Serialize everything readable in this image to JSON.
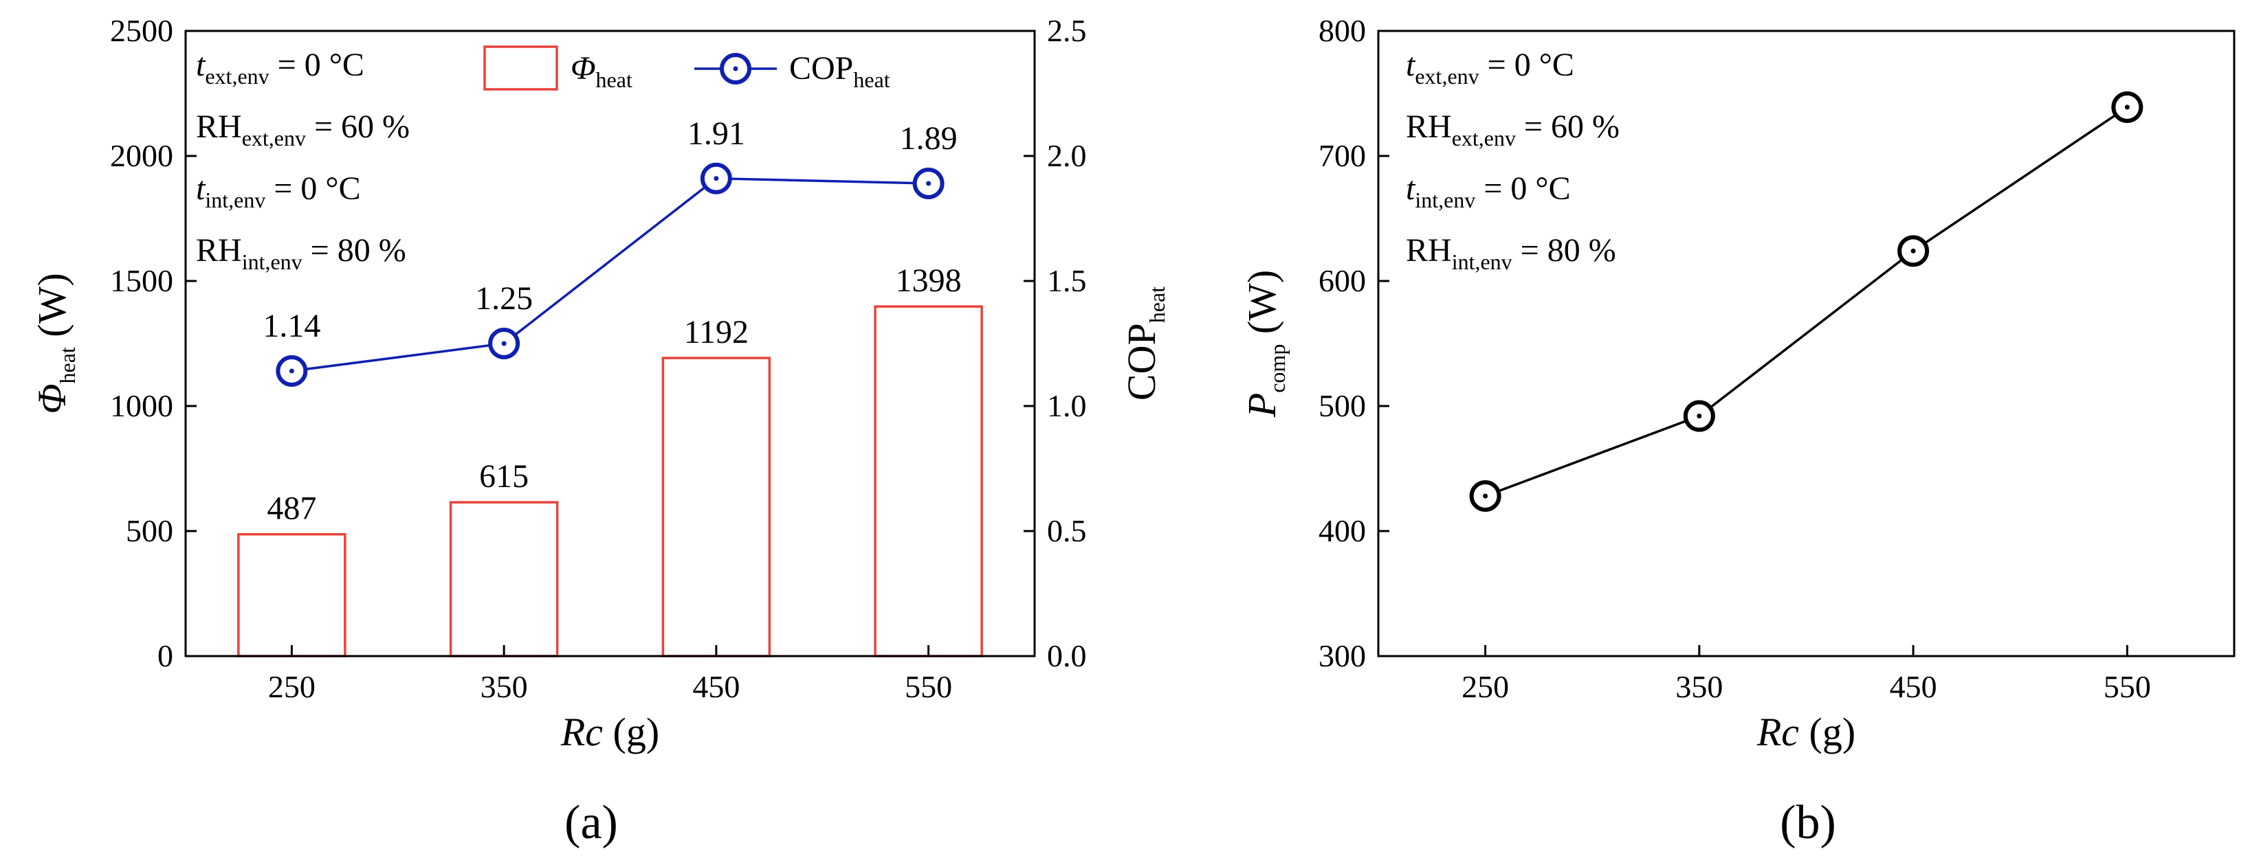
{
  "colors": {
    "bar": "#e8433c",
    "cop_line": "#1020b0",
    "pcomp_line": "#000000"
  },
  "chart_data": [
    {
      "type": "bar+line",
      "panel_label": "(a)",
      "categories": [
        "250",
        "350",
        "450",
        "550"
      ],
      "series": [
        {
          "name": "Φ_heat",
          "kind": "bar",
          "axis": "left",
          "values": [
            487,
            615,
            1192,
            1398
          ],
          "labels": [
            "487",
            "615",
            "1192",
            "1398"
          ]
        },
        {
          "name": "COP_heat",
          "kind": "line",
          "axis": "right",
          "values": [
            1.14,
            1.25,
            1.91,
            1.89
          ],
          "labels": [
            "1.14",
            "1.25",
            "1.91",
            "1.89"
          ]
        }
      ],
      "ylim": [
        0,
        2500
      ],
      "y2lim": [
        0,
        2.5
      ],
      "yticks": [
        "0",
        "500",
        "1000",
        "1500",
        "2000",
        "2500"
      ],
      "y2ticks": [
        "0.0",
        "0.5",
        "1.0",
        "1.5",
        "2.0",
        "2.5"
      ],
      "xlabel": {
        "main": "Rc",
        "unit": "(g)"
      },
      "ylabel": {
        "main": "Φ",
        "sub": "heat",
        "unit": "(W)"
      },
      "y2label": {
        "main": "COP",
        "sub": "heat"
      },
      "legend": [
        {
          "main": "Φ",
          "sub": "heat"
        },
        {
          "main": "COP",
          "sub": "heat"
        }
      ],
      "legend_position": "top-center",
      "annotations": [
        {
          "main": "t",
          "sub": "ext,env",
          "rest": " = 0 °C"
        },
        {
          "main": "RH",
          "sub": "ext,env",
          "rest": " = 60 %"
        },
        {
          "main": "t",
          "sub": "int,env",
          "rest": " = 0 °C"
        },
        {
          "main": "RH",
          "sub": "int,env",
          "rest": " = 80 %"
        }
      ]
    },
    {
      "type": "line",
      "panel_label": "(b)",
      "categories": [
        "250",
        "350",
        "450",
        "550"
      ],
      "series": [
        {
          "name": "P_comp",
          "values": [
            428,
            492,
            624,
            739
          ]
        }
      ],
      "ylim": [
        300,
        800
      ],
      "yticks": [
        "300",
        "400",
        "500",
        "600",
        "700",
        "800"
      ],
      "xlabel": {
        "main": "Rc",
        "unit": "(g)"
      },
      "ylabel": {
        "main": "P",
        "sub": "comp",
        "unit": "(W)"
      },
      "annotations": [
        {
          "main": "t",
          "sub": "ext,env",
          "rest": " = 0 °C"
        },
        {
          "main": "RH",
          "sub": "ext,env",
          "rest": " = 60 %"
        },
        {
          "main": "t",
          "sub": "int,env",
          "rest": " = 0 °C"
        },
        {
          "main": "RH",
          "sub": "int,env",
          "rest": " = 80 %"
        }
      ]
    }
  ]
}
